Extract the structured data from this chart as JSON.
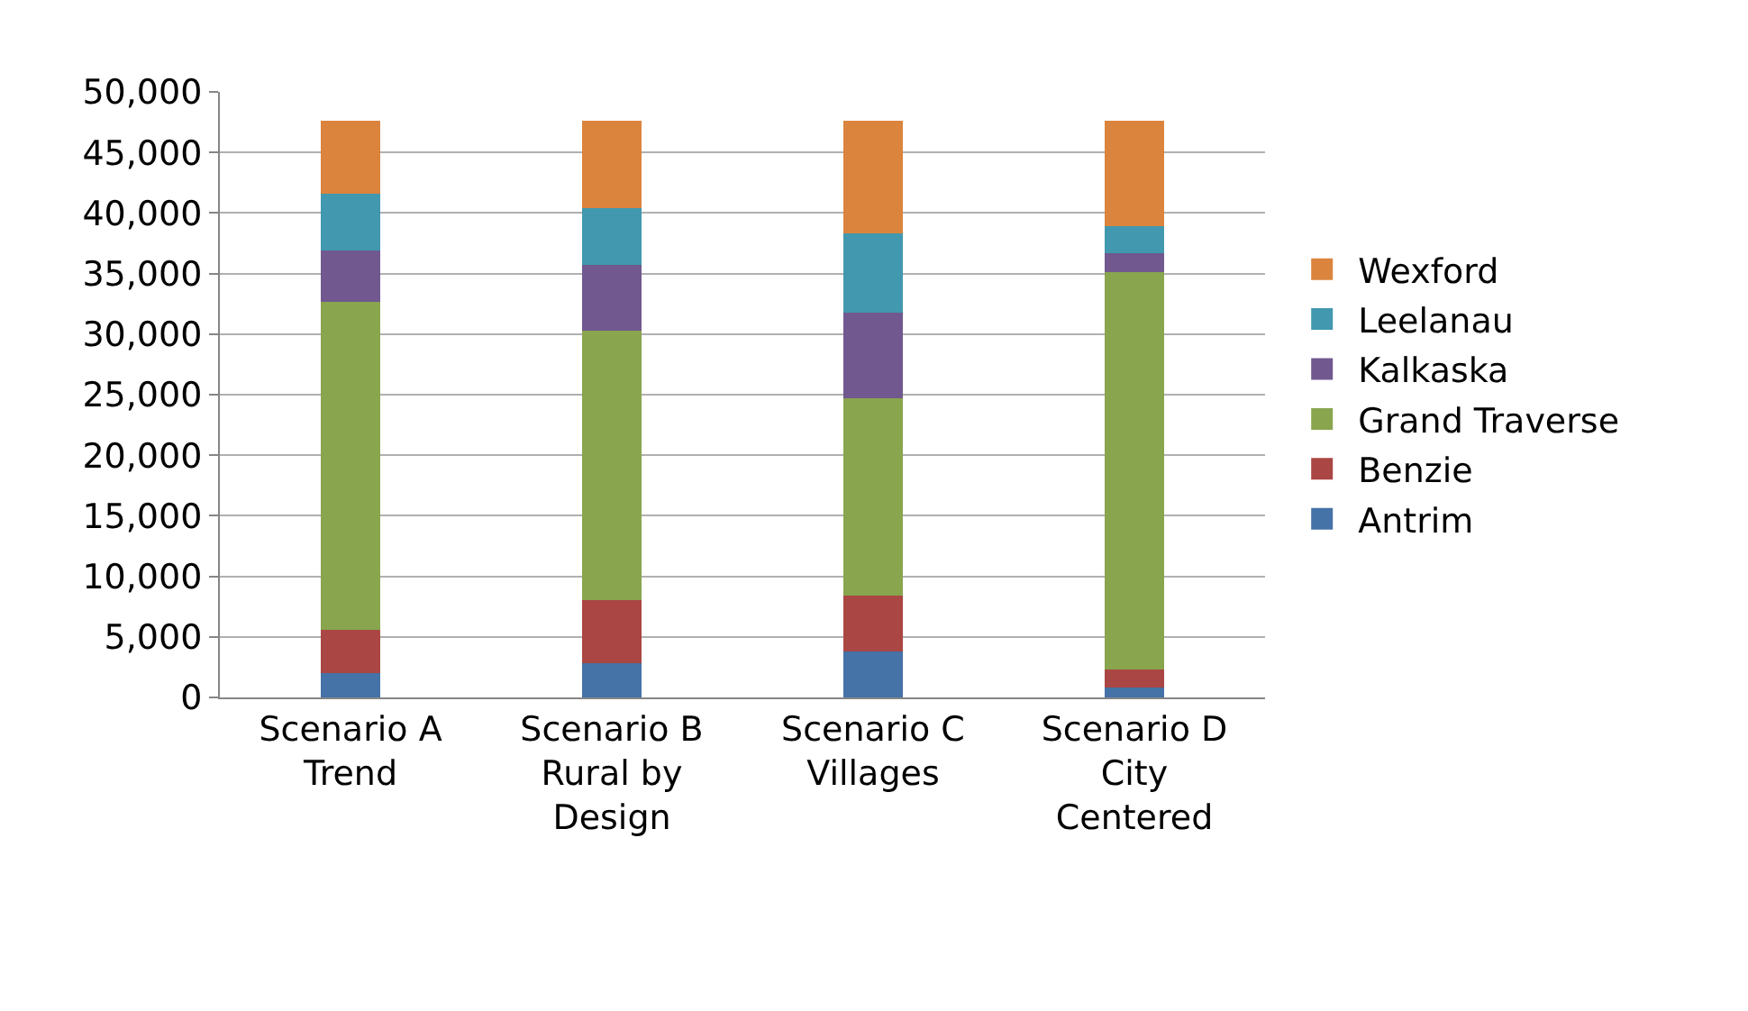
{
  "chart_data": {
    "type": "bar",
    "stacked": true,
    "categories": [
      "Scenario A Trend",
      "Scenario B Rural by Design",
      "Scenario C Villages",
      "Scenario D City Centered"
    ],
    "series": [
      {
        "name": "Antrim",
        "color": "#4572a7",
        "values": [
          2000,
          2800,
          3800,
          800
        ]
      },
      {
        "name": "Benzie",
        "color": "#aa4643",
        "values": [
          3600,
          5200,
          4600,
          1500
        ]
      },
      {
        "name": "Grand Traverse",
        "color": "#89a54e",
        "values": [
          27100,
          22300,
          16300,
          32800
        ]
      },
      {
        "name": "Kalkaska",
        "color": "#71588f",
        "values": [
          4200,
          5400,
          7100,
          1600
        ]
      },
      {
        "name": "Leelanau",
        "color": "#4198af",
        "values": [
          4700,
          4700,
          6500,
          2200
        ]
      },
      {
        "name": "Wexford",
        "color": "#db843d",
        "values": [
          6000,
          7200,
          9300,
          8700
        ]
      }
    ],
    "ylim": [
      0,
      50000
    ],
    "yticks": [
      {
        "value": 0,
        "label": "0"
      },
      {
        "value": 5000,
        "label": "5,000"
      },
      {
        "value": 10000,
        "label": "10,000"
      },
      {
        "value": 15000,
        "label": "15,000"
      },
      {
        "value": 20000,
        "label": "20,000"
      },
      {
        "value": 25000,
        "label": "25,000"
      },
      {
        "value": 30000,
        "label": "30,000"
      },
      {
        "value": 35000,
        "label": "35,000"
      },
      {
        "value": 40000,
        "label": "40,000"
      },
      {
        "value": 45000,
        "label": "45,000"
      },
      {
        "value": 50000,
        "label": "50,000"
      }
    ],
    "grid": "y",
    "legend": "right"
  }
}
